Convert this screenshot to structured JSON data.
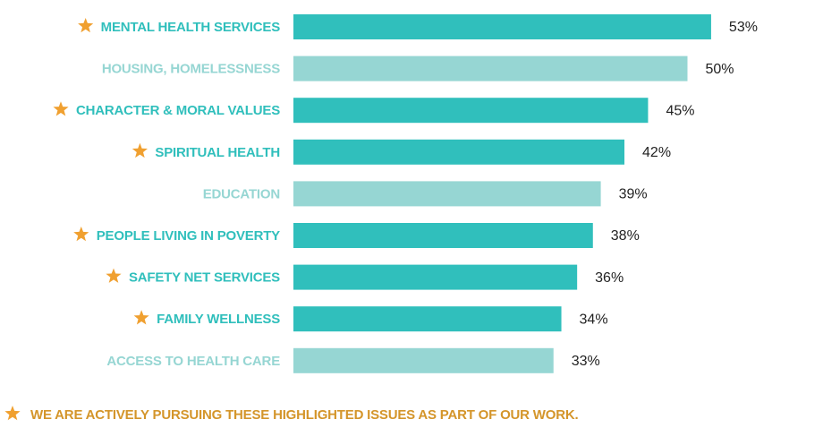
{
  "chart_data": {
    "type": "bar",
    "orientation": "horizontal",
    "categories": [
      "MENTAL HEALTH SERVICES",
      "HOUSING, HOMELESSNESS",
      "CHARACTER & MORAL VALUES",
      "SPIRITUAL HEALTH",
      "EDUCATION",
      "PEOPLE LIVING IN POVERTY",
      "SAFETY NET SERVICES",
      "FAMILY WELLNESS",
      "ACCESS TO HEALTH CARE"
    ],
    "values": [
      53,
      50,
      45,
      42,
      39,
      38,
      36,
      34,
      33
    ],
    "value_labels": [
      "53%",
      "50%",
      "45%",
      "42%",
      "39%",
      "38%",
      "36%",
      "34%",
      "33%"
    ],
    "highlighted": [
      true,
      false,
      true,
      true,
      false,
      true,
      true,
      true,
      false
    ],
    "color": "#30bfbc",
    "muted_color": "#96d6d3",
    "star_color": "#f0a030",
    "footnote": "WE ARE ACTIVELY PURSUING THESE HIGHLIGHTED ISSUES AS PART OF OUR WORK."
  }
}
